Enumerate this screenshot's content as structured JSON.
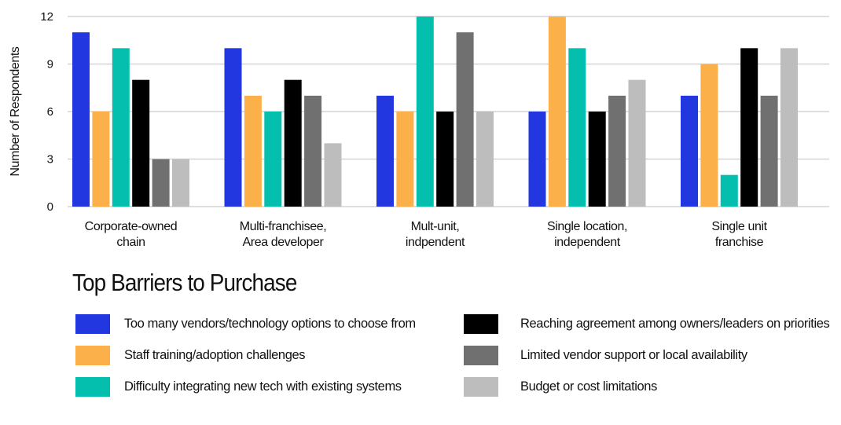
{
  "chart_data": {
    "type": "bar",
    "title": "",
    "xlabel": "",
    "ylabel": "Number of Respondents",
    "ylim": [
      0,
      12
    ],
    "yticks": [
      0,
      3,
      6,
      9,
      12
    ],
    "grid": true,
    "categories": [
      [
        "Corporate-owned",
        "chain"
      ],
      [
        "Multi-franchisee,",
        "Area developer"
      ],
      [
        "Mult-unit,",
        "indpendent"
      ],
      [
        "Single location,",
        "independent"
      ],
      [
        "Single unit",
        "franchise"
      ]
    ],
    "legend_title": "Top Barriers to Purchase",
    "legend_placement": "bottom",
    "series": [
      {
        "name": "Too many vendors/technology options to choose from",
        "color": "#2237e0",
        "values": [
          11,
          10,
          7,
          6,
          7
        ]
      },
      {
        "name": "Staff training/adoption challenges",
        "color": "#fbb04a",
        "values": [
          6,
          7,
          6,
          12,
          9
        ]
      },
      {
        "name": "Difficulty integrating new tech with existing systems",
        "color": "#04bfae",
        "values": [
          10,
          6,
          12,
          10,
          2
        ]
      },
      {
        "name": "Reaching agreement among owners/leaders on priorities",
        "color": "#000000",
        "values": [
          8,
          8,
          6,
          6,
          10
        ]
      },
      {
        "name": "Limited vendor support or local availability",
        "color": "#707070",
        "values": [
          3,
          7,
          11,
          7,
          7
        ]
      },
      {
        "name": "Budget or cost limitations",
        "color": "#bdbdbd",
        "values": [
          3,
          4,
          6,
          8,
          10
        ]
      }
    ]
  }
}
